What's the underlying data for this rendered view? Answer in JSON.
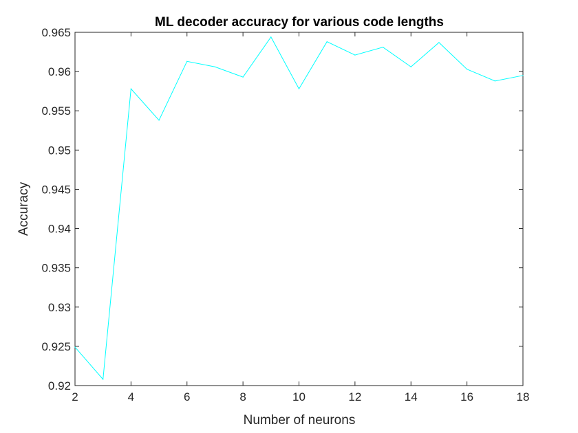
{
  "chart_data": {
    "type": "line",
    "title": "ML decoder accuracy for various code lengths",
    "xlabel": "Number of neurons",
    "ylabel": "Accuracy",
    "xlim": [
      2,
      18
    ],
    "ylim": [
      0.92,
      0.965
    ],
    "xticks": [
      "2",
      "4",
      "6",
      "8",
      "10",
      "12",
      "14",
      "16",
      "18"
    ],
    "yticks": [
      "0.92",
      "0.925",
      "0.93",
      "0.935",
      "0.94",
      "0.945",
      "0.95",
      "0.955",
      "0.96",
      "0.965"
    ],
    "grid": false,
    "series": [
      {
        "color": "#00ffff",
        "x": [
          2,
          3,
          4,
          5,
          6,
          7,
          8,
          9,
          10,
          11,
          12,
          13,
          14,
          15,
          16,
          17,
          18
        ],
        "y": [
          0.9249,
          0.9208,
          0.9578,
          0.9538,
          0.9613,
          0.9606,
          0.9593,
          0.9644,
          0.9578,
          0.9638,
          0.9621,
          0.9631,
          0.9606,
          0.9637,
          0.9603,
          0.9588,
          0.9595
        ]
      }
    ]
  }
}
